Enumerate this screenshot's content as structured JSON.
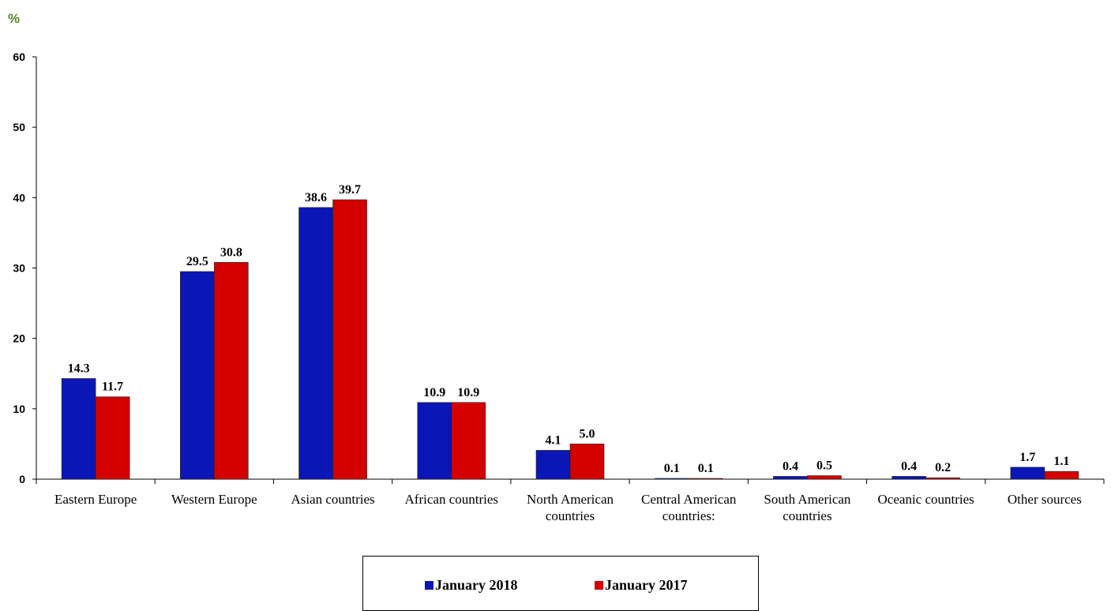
{
  "chart_data": {
    "type": "bar",
    "unit_label": "%",
    "categories": [
      [
        "Eastern Europe"
      ],
      [
        "Western Europe"
      ],
      [
        "Asian countries"
      ],
      [
        "African countries"
      ],
      [
        "North American",
        "countries"
      ],
      [
        "Central American",
        "countries:"
      ],
      [
        "South American",
        "countries"
      ],
      [
        "Oceanic countries"
      ],
      [
        "Other sources"
      ]
    ],
    "series": [
      {
        "name": "January 2018",
        "color": "#0a16b5",
        "values": [
          14.3,
          29.5,
          38.6,
          10.9,
          4.1,
          0.1,
          0.4,
          0.4,
          1.7
        ],
        "labels": [
          "14.3",
          "29.5",
          "38.6",
          "10.9",
          "4.1",
          "0.1",
          "0.4",
          "0.4",
          "1.7"
        ]
      },
      {
        "name": "January 2017",
        "color": "#d40000",
        "values": [
          11.7,
          30.8,
          39.7,
          10.9,
          5.0,
          0.1,
          0.5,
          0.2,
          1.1
        ],
        "labels": [
          "11.7",
          "30.8",
          "39.7",
          "10.9",
          "5.0",
          "0.1",
          "0.5",
          "0.2",
          "1.1"
        ]
      }
    ],
    "yticks": [
      "0",
      "10",
      "20",
      "30",
      "40",
      "50",
      "60"
    ],
    "ylim": [
      0,
      60
    ],
    "grid": false,
    "legend_position": "bottom"
  }
}
